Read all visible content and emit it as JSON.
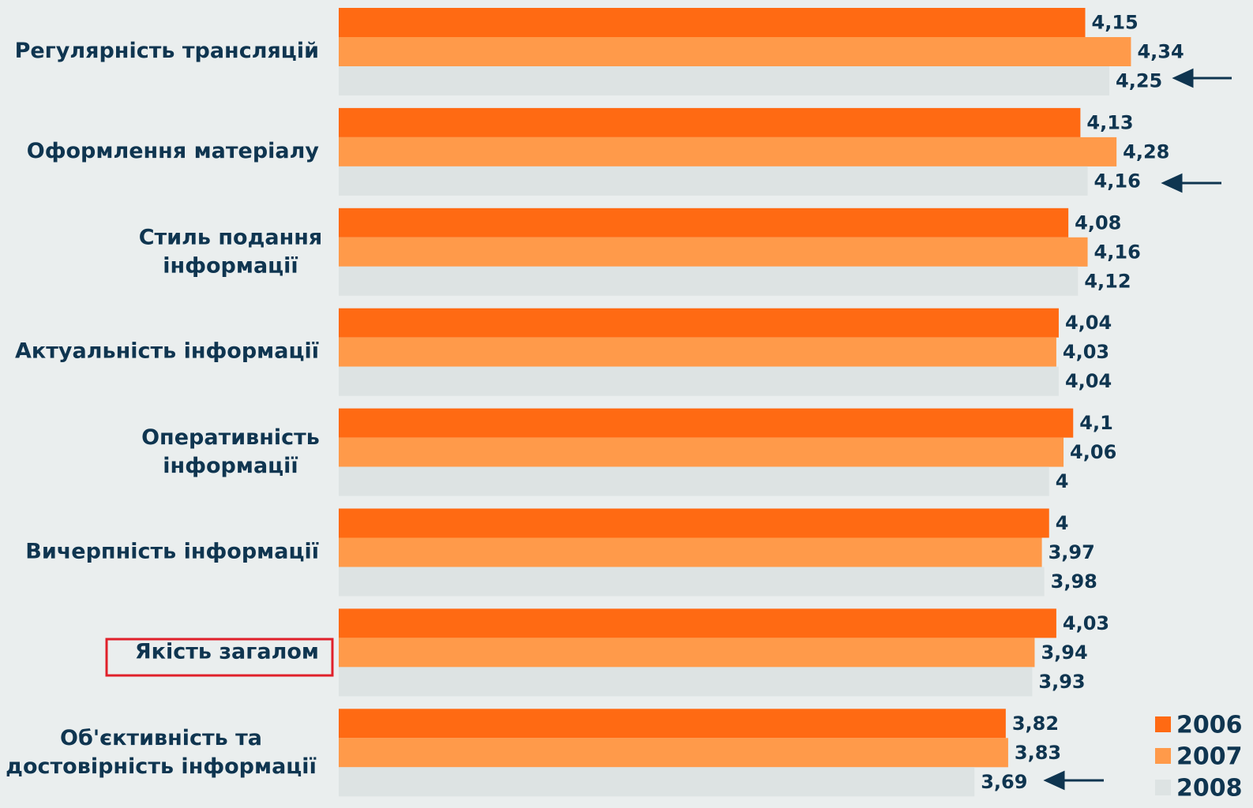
{
  "chart_data": {
    "type": "bar",
    "orientation": "horizontal",
    "categories": [
      "Регулярність трансляцій",
      "Оформлення матеріалу",
      "Стиль подання\nінформації",
      "Актуальність інформації",
      "Оперативність\nінформації",
      "Вичерпність інформації",
      "Якість загалом",
      "Об'єктивність та\nдостовірність інформації"
    ],
    "series": [
      {
        "name": "2006",
        "color": "#ff6a13",
        "values": [
          4.15,
          4.13,
          4.08,
          4.04,
          4.1,
          4,
          4.03,
          3.82
        ],
        "value_labels": [
          "4,15",
          "4,13",
          "4,08",
          "4,04",
          "4,1",
          "4",
          "4,03",
          "3,82"
        ]
      },
      {
        "name": "2007",
        "color": "#ff9a4a",
        "values": [
          4.34,
          4.28,
          4.16,
          4.03,
          4.06,
          3.97,
          3.94,
          3.83
        ],
        "value_labels": [
          "4,34",
          "4,28",
          "4,16",
          "4,03",
          "4,06",
          "3,97",
          "3,94",
          "3,83"
        ]
      },
      {
        "name": "2008",
        "color": "#dde3e3",
        "values": [
          4.25,
          4.16,
          4.12,
          4.04,
          4,
          3.98,
          3.93,
          3.69
        ],
        "value_labels": [
          "4,25",
          "4,16",
          "4,12",
          "4,04",
          "4",
          "3,98",
          "3,93",
          "3,69"
        ]
      }
    ],
    "xlim": [
      1.05,
      4.6
    ],
    "legend": "bottom-right"
  }
}
